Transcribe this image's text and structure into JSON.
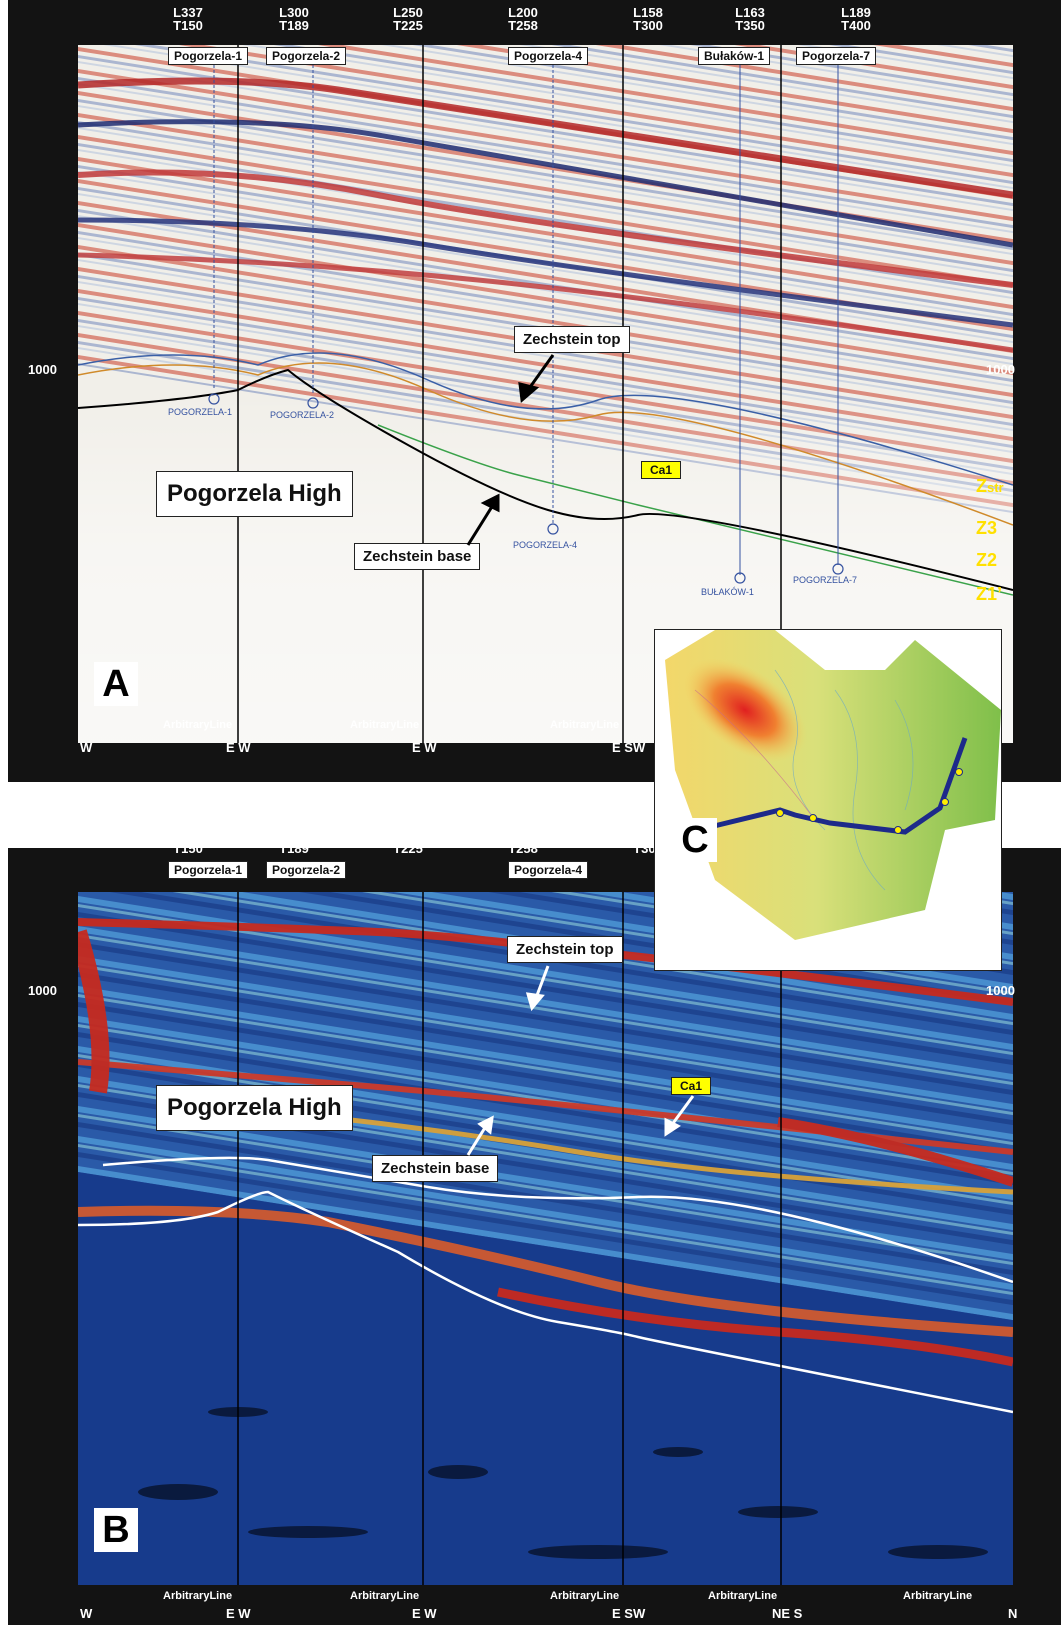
{
  "ticks": [
    {
      "l": "L337",
      "t": "T150"
    },
    {
      "l": "L300",
      "t": "T189"
    },
    {
      "l": "L250",
      "t": "T225"
    },
    {
      "l": "L200",
      "t": "T258"
    },
    {
      "l": "L158",
      "t": "T300"
    },
    {
      "l": "L163",
      "t": "T350"
    },
    {
      "l": "L189",
      "t": "T400"
    }
  ],
  "wells_a": [
    "Pogorzela-1",
    "Pogorzela-2",
    "Pogorzela-4",
    "Bułaków-1",
    "Pogorzela-7"
  ],
  "wells_b": [
    "Pogorzela-1",
    "Pogorzela-2",
    "Pogorzela-4"
  ],
  "twt_label": "1000",
  "callouts": {
    "zechstein_top": "Zechstein top",
    "zechstein_base": "Zechstein base",
    "pogorzela_high": "Pogorzela High",
    "ca1": "Ca1"
  },
  "zones": {
    "zstr_main": "Z",
    "zstr_sub": "str",
    "z3": "Z3",
    "z2": "Z2",
    "z1": "Z1’"
  },
  "panels": {
    "a": "A",
    "b": "B",
    "c": "C"
  },
  "arbitrary_line": "ArbitraryLine",
  "directions_a": [
    "W",
    "E W",
    "E W",
    "E SW"
  ],
  "directions_b": [
    "W",
    "E W",
    "E W",
    "E SW",
    "NE S",
    "N"
  ],
  "well_symbols_a": [
    "POGORZELA-1",
    "POGORZELA-2",
    "POGORZELA-4",
    "BUŁAKÓW-1",
    "POGORZELA-7"
  ]
}
